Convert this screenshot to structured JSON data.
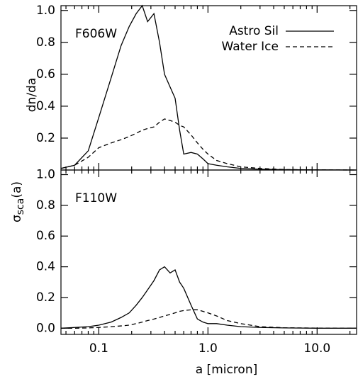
{
  "shared_y_label": {
    "symbol": "σ",
    "subscript": "sca",
    "suffix": "(a)"
  },
  "chart_data": [
    {
      "type": "line",
      "panel_label": "F606W",
      "y_label": "dn/da",
      "log_x": true,
      "legend": "top-right",
      "x": [
        0.045,
        0.06,
        0.08,
        0.1,
        0.13,
        0.16,
        0.19,
        0.22,
        0.25,
        0.28,
        0.32,
        0.36,
        0.4,
        0.45,
        0.5,
        0.55,
        0.6,
        0.7,
        0.8,
        0.9,
        1.0,
        1.2,
        1.5,
        2,
        3,
        5,
        10,
        23
      ],
      "xlim": [
        0.045,
        23
      ],
      "ylim": [
        0,
        1.03
      ],
      "yticks": [
        0.2,
        0.4,
        0.6,
        0.8,
        {
          "value": 1,
          "label": "1.0"
        }
      ],
      "series": [
        {
          "name": "Astro Sil",
          "color": "#000000",
          "line_style": "solid",
          "values": [
            0.01,
            0.03,
            0.12,
            0.33,
            0.58,
            0.78,
            0.9,
            0.98,
            1.03,
            0.93,
            0.98,
            0.8,
            0.6,
            0.52,
            0.45,
            0.25,
            0.1,
            0.11,
            0.1,
            0.07,
            0.04,
            0.03,
            0.02,
            0.01,
            0.005,
            0.002,
            0.001,
            0
          ]
        },
        {
          "name": "Water Ice",
          "color": "#000000",
          "line_style": "dashed",
          "values": [
            0.01,
            0.03,
            0.08,
            0.14,
            0.17,
            0.19,
            0.21,
            0.23,
            0.25,
            0.26,
            0.27,
            0.3,
            0.32,
            0.31,
            0.3,
            0.28,
            0.27,
            0.22,
            0.17,
            0.13,
            0.1,
            0.06,
            0.04,
            0.02,
            0.01,
            0.003,
            0.001,
            0
          ]
        }
      ]
    },
    {
      "type": "line",
      "panel_label": "F110W",
      "x_label": "a [micron]",
      "log_x": true,
      "x": [
        0.045,
        0.06,
        0.08,
        0.1,
        0.13,
        0.16,
        0.19,
        0.22,
        0.25,
        0.28,
        0.32,
        0.36,
        0.4,
        0.45,
        0.5,
        0.55,
        0.6,
        0.7,
        0.8,
        0.9,
        1.0,
        1.2,
        1.5,
        2,
        3,
        5,
        10,
        23
      ],
      "xlim": [
        0.045,
        23
      ],
      "ylim": [
        -0.04,
        1.03
      ],
      "xticks": [
        0.1,
        {
          "value": 1,
          "label": "1.0"
        },
        {
          "value": 10,
          "label": "10.0"
        }
      ],
      "yticks": [
        {
          "value": 0,
          "label": "0.0"
        },
        0.2,
        0.4,
        0.6,
        0.8,
        {
          "value": 1,
          "label": "1.0"
        }
      ],
      "series": [
        {
          "color": "#000000",
          "line_style": "solid",
          "values": [
            0,
            0.005,
            0.01,
            0.02,
            0.04,
            0.07,
            0.1,
            0.15,
            0.2,
            0.25,
            0.31,
            0.38,
            0.4,
            0.36,
            0.38,
            0.3,
            0.26,
            0.15,
            0.06,
            0.04,
            0.03,
            0.03,
            0.02,
            0.01,
            0.005,
            0.002,
            0,
            0
          ]
        },
        {
          "color": "#000000",
          "line_style": "dashed",
          "values": [
            0,
            0,
            0.002,
            0.005,
            0.01,
            0.015,
            0.02,
            0.03,
            0.04,
            0.05,
            0.06,
            0.07,
            0.08,
            0.09,
            0.1,
            0.11,
            0.115,
            0.12,
            0.12,
            0.11,
            0.1,
            0.08,
            0.05,
            0.03,
            0.01,
            0.003,
            0.001,
            0
          ]
        }
      ]
    }
  ]
}
